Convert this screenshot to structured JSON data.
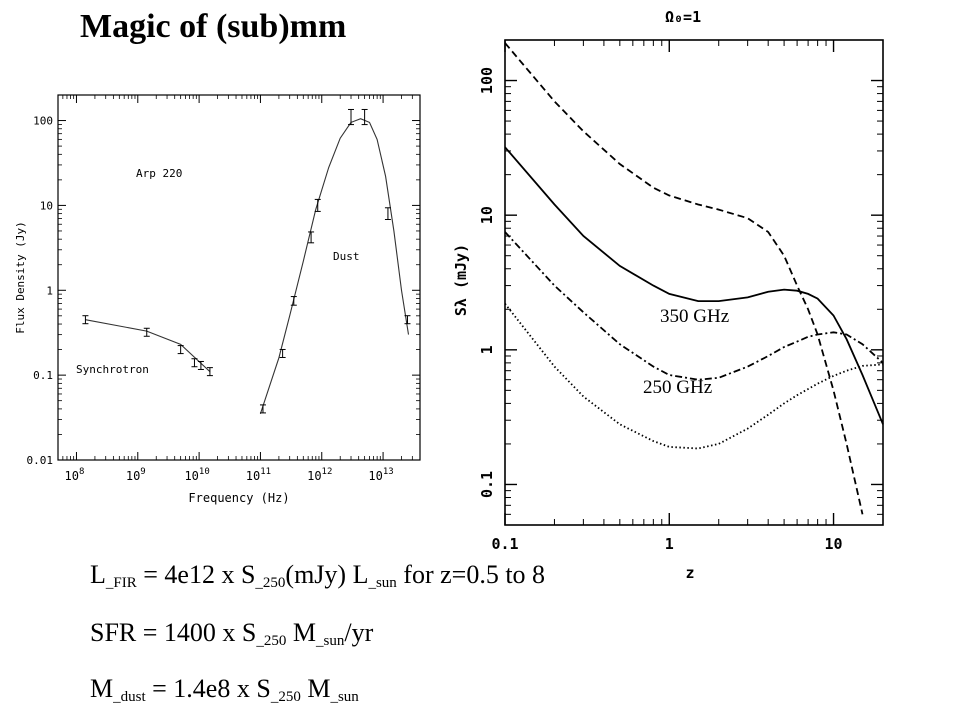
{
  "slide": {
    "title": "Magic of (sub)mm",
    "formulas": [
      {
        "a": "L",
        "a_sub": "_FIR",
        "b": " = 4e12 x S",
        "b_sub": "_250",
        "c": "(mJy) L",
        "c_sub": "_sun",
        "d": "  for z=0.5 to 8"
      },
      {
        "a": "SFR = 1400 x S",
        "a_sub": "_250",
        "b": " M",
        "b_sub": "_sun",
        "c": "/yr"
      },
      {
        "a": "M",
        "a_sub": "_dust",
        "b": " = 1.4e8 x S",
        "b_sub": "_250",
        "c": " M",
        "c_sub": "_sun"
      }
    ]
  },
  "chart_data": [
    {
      "type": "scatter",
      "title": "",
      "annotations": [
        "Arp 220",
        "Dust",
        "Synchrotron"
      ],
      "xlabel": "Frequency (Hz)",
      "ylabel": "Flux Density (Jy)",
      "xscale": "log",
      "yscale": "log",
      "xlim": [
        50000000.0,
        40000000000000.0
      ],
      "ylim": [
        0.01,
        200
      ],
      "x_ticks": [
        {
          "value": 100000000.0,
          "base": "10",
          "exp": "8"
        },
        {
          "value": 1000000000.0,
          "base": "10",
          "exp": "9"
        },
        {
          "value": 10000000000.0,
          "base": "10",
          "exp": "10"
        },
        {
          "value": 100000000000.0,
          "base": "10",
          "exp": "11"
        },
        {
          "value": 1000000000000.0,
          "base": "10",
          "exp": "12"
        },
        {
          "value": 10000000000000.0,
          "base": "10",
          "exp": "13"
        }
      ],
      "y_ticks": [
        {
          "value": 0.01,
          "label": "0.01"
        },
        {
          "value": 0.1,
          "label": "0.1"
        },
        {
          "value": 1,
          "label": "1"
        },
        {
          "value": 10,
          "label": "10"
        },
        {
          "value": 100,
          "label": "100"
        }
      ],
      "points": [
        {
          "x": 140000000.0,
          "y": 0.45
        },
        {
          "x": 1400000000.0,
          "y": 0.32
        },
        {
          "x": 5000000000.0,
          "y": 0.2
        },
        {
          "x": 8400000000.0,
          "y": 0.14
        },
        {
          "x": 10700000000.0,
          "y": 0.13
        },
        {
          "x": 15000000000.0,
          "y": 0.11
        },
        {
          "x": 110000000000.0,
          "y": 0.04
        },
        {
          "x": 230000000000.0,
          "y": 0.18
        },
        {
          "x": 350000000000.0,
          "y": 0.75
        },
        {
          "x": 670000000000.0,
          "y": 4.2
        },
        {
          "x": 860000000000.0,
          "y": 10
        },
        {
          "x": 3000000000000.0,
          "y": 110
        },
        {
          "x": 5000000000000.0,
          "y": 110
        },
        {
          "x": 12000000000000.0,
          "y": 8
        },
        {
          "x": 25000000000000.0,
          "y": 0.45
        }
      ],
      "series": [
        {
          "component": "synchrotron",
          "x": [
            140000000.0,
            1400000000.0,
            5000000000.0,
            15000000000.0
          ],
          "y": [
            0.45,
            0.33,
            0.23,
            0.11
          ]
        },
        {
          "component": "dust",
          "x": [
            100000000000.0,
            200000000000.0,
            300000000000.0,
            500000000000.0,
            800000000000.0,
            1300000000000.0,
            2000000000000.0,
            3000000000000.0,
            4300000000000.0,
            6000000000000.0,
            8000000000000.0,
            11000000000000.0,
            15000000000000.0,
            20000000000000.0,
            26000000000000.0
          ],
          "y": [
            0.035,
            0.16,
            0.5,
            2.2,
            9,
            28,
            62,
            95,
            105,
            95,
            60,
            22,
            5,
            1,
            0.3
          ]
        }
      ]
    },
    {
      "type": "line",
      "title": "Ω₀=1",
      "xlabel": "z",
      "ylabel": "Sλ (mJy)",
      "xscale": "log",
      "yscale": "log",
      "xlim": [
        0.1,
        20
      ],
      "ylim": [
        0.05,
        200
      ],
      "x_ticks": [
        {
          "value": 0.1,
          "label": "0.1"
        },
        {
          "value": 1,
          "label": "1"
        },
        {
          "value": 10,
          "label": "10"
        }
      ],
      "y_ticks": [
        {
          "value": 0.1,
          "label": "0.1"
        },
        {
          "value": 1,
          "label": "1"
        },
        {
          "value": 10,
          "label": "10"
        },
        {
          "value": 100,
          "label": "100"
        }
      ],
      "annotations": [
        "350 GHz",
        "250 GHz"
      ],
      "series": [
        {
          "style": "dashed",
          "x": [
            0.1,
            0.2,
            0.3,
            0.5,
            0.8,
            1,
            1.5,
            2,
            3,
            4,
            5,
            6,
            7,
            8,
            10,
            12,
            15
          ],
          "y": [
            190,
            70,
            42,
            24,
            16,
            14,
            12,
            11,
            9.5,
            7.5,
            5,
            3,
            2,
            1.3,
            0.5,
            0.2,
            0.06
          ]
        },
        {
          "style": "solid",
          "x": [
            0.1,
            0.2,
            0.3,
            0.5,
            0.8,
            1,
            1.5,
            2,
            3,
            4,
            5,
            6,
            7,
            8,
            10,
            12,
            15,
            20
          ],
          "y": [
            32,
            12,
            7,
            4.2,
            3,
            2.6,
            2.3,
            2.3,
            2.45,
            2.7,
            2.8,
            2.75,
            2.6,
            2.4,
            1.8,
            1.2,
            0.65,
            0.28
          ]
        },
        {
          "style": "dash-dot",
          "x": [
            0.1,
            0.2,
            0.3,
            0.5,
            0.8,
            1,
            1.5,
            2,
            3,
            4,
            5,
            6,
            7,
            8,
            10,
            12,
            15,
            20
          ],
          "y": [
            7.5,
            3,
            1.9,
            1.1,
            0.75,
            0.65,
            0.6,
            0.62,
            0.75,
            0.9,
            1.05,
            1.15,
            1.25,
            1.3,
            1.35,
            1.3,
            1.1,
            0.8
          ]
        },
        {
          "style": "dotted",
          "x": [
            0.1,
            0.2,
            0.3,
            0.5,
            0.8,
            1,
            1.5,
            2,
            3,
            4,
            5,
            6,
            8,
            10,
            12,
            15,
            20
          ],
          "y": [
            2.2,
            0.75,
            0.45,
            0.28,
            0.21,
            0.19,
            0.185,
            0.2,
            0.26,
            0.33,
            0.4,
            0.46,
            0.56,
            0.64,
            0.7,
            0.76,
            0.78
          ]
        }
      ]
    }
  ]
}
